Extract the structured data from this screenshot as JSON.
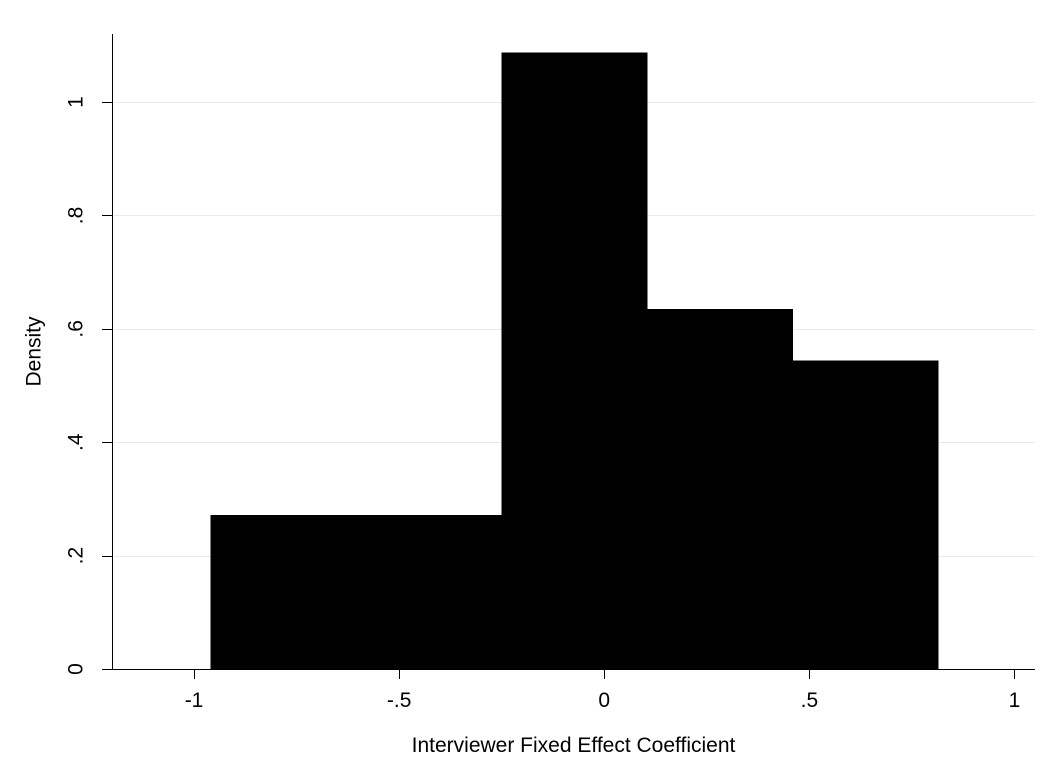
{
  "chart_data": {
    "type": "bar",
    "subtype": "histogram",
    "title": "",
    "xlabel": "Interviewer Fixed Effect Coefficient",
    "ylabel": "Density",
    "xlim": [
      -1.2,
      1.05
    ],
    "ylim": [
      0,
      1.12
    ],
    "x_ticks": [
      -1,
      -0.5,
      0,
      0.5,
      1
    ],
    "x_tick_labels": [
      "-1",
      "-.5",
      "0",
      ".5",
      "1"
    ],
    "y_ticks": [
      0,
      0.2,
      0.4,
      0.6,
      0.8,
      1
    ],
    "y_tick_labels": [
      "0",
      ".2",
      ".4",
      ".6",
      ".8",
      "1"
    ],
    "bins": [
      {
        "x0": -0.96,
        "x1": -0.25,
        "density": 0.272
      },
      {
        "x0": -0.25,
        "x1": 0.105,
        "density": 1.087
      },
      {
        "x0": 0.105,
        "x1": 0.46,
        "density": 0.635
      },
      {
        "x0": 0.46,
        "x1": 0.815,
        "density": 0.544
      }
    ],
    "grid": true,
    "legend": "none",
    "bar_color": "#000000",
    "grid_color": "#eaeaea"
  }
}
